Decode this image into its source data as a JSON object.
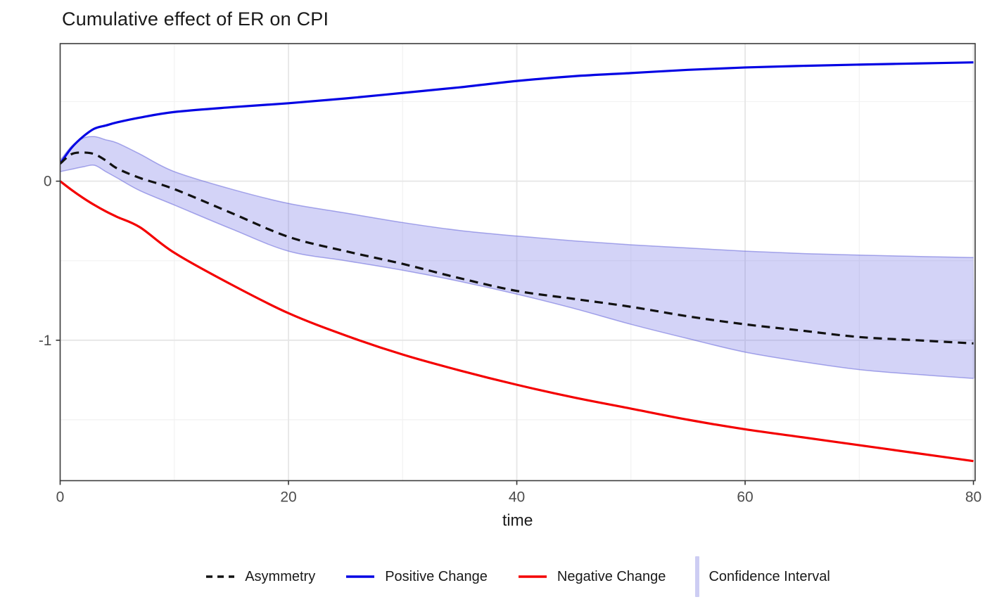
{
  "chart_data": {
    "type": "line",
    "title": "Cumulative effect of ER on CPI",
    "xlabel": "time",
    "xlim": [
      0,
      80.15
    ],
    "ylim": [
      -1.883,
      0.865
    ],
    "grid": true,
    "legend_position": "bottom",
    "x_major": [
      {
        "v": 0,
        "label": "0"
      },
      {
        "v": 20,
        "label": "20"
      },
      {
        "v": 40,
        "label": "40"
      },
      {
        "v": 60,
        "label": "60"
      },
      {
        "v": 80,
        "label": "80"
      }
    ],
    "x_minor": [
      10,
      30,
      50,
      70
    ],
    "y_major": [
      {
        "v": 0,
        "label": "0"
      },
      {
        "v": -1,
        "label": "-1"
      }
    ],
    "y_minor": [
      0.5,
      -0.5,
      -1.5
    ],
    "x": [
      0,
      1,
      2,
      3,
      4,
      5,
      7,
      10,
      15,
      20,
      25,
      30,
      35,
      40,
      45,
      50,
      55,
      60,
      65,
      70,
      75,
      80
    ],
    "series": [
      {
        "name": "Positive Change",
        "color": "#0404e4",
        "dash": false,
        "values": [
          0.11,
          0.21,
          0.28,
          0.33,
          0.35,
          0.37,
          0.4,
          0.435,
          0.465,
          0.49,
          0.52,
          0.555,
          0.59,
          0.63,
          0.66,
          0.68,
          0.7,
          0.715,
          0.725,
          0.733,
          0.74,
          0.747
        ]
      },
      {
        "name": "Negative Change",
        "color": "#f40000",
        "dash": false,
        "values": [
          0.0,
          -0.055,
          -0.105,
          -0.15,
          -0.19,
          -0.225,
          -0.29,
          -0.45,
          -0.65,
          -0.83,
          -0.97,
          -1.09,
          -1.19,
          -1.28,
          -1.36,
          -1.43,
          -1.5,
          -1.56,
          -1.61,
          -1.66,
          -1.71,
          -1.76
        ]
      },
      {
        "name": "Asymmetry",
        "color": "#111111",
        "dash": true,
        "values": [
          0.11,
          0.17,
          0.18,
          0.17,
          0.13,
          0.08,
          0.02,
          -0.05,
          -0.2,
          -0.35,
          -0.44,
          -0.52,
          -0.61,
          -0.69,
          -0.74,
          -0.79,
          -0.85,
          -0.9,
          -0.94,
          -0.98,
          -1.0,
          -1.02
        ]
      }
    ],
    "band": {
      "name": "Confidence Interval",
      "fill": "rgba(120,120,230,0.33)",
      "edge": "rgba(90,90,215,0.5)",
      "upper": [
        0.13,
        0.22,
        0.27,
        0.28,
        0.26,
        0.24,
        0.17,
        0.06,
        -0.05,
        -0.14,
        -0.2,
        -0.26,
        -0.31,
        -0.345,
        -0.375,
        -0.4,
        -0.42,
        -0.44,
        -0.455,
        -0.465,
        -0.473,
        -0.48
      ],
      "lower": [
        0.06,
        0.075,
        0.09,
        0.1,
        0.06,
        0.02,
        -0.06,
        -0.15,
        -0.3,
        -0.44,
        -0.5,
        -0.56,
        -0.63,
        -0.71,
        -0.8,
        -0.9,
        -0.99,
        -1.075,
        -1.135,
        -1.185,
        -1.215,
        -1.24
      ]
    }
  },
  "legend": {
    "items": [
      {
        "id": "asymmetry",
        "label": "Asymmetry",
        "key": "dashed-line",
        "color": "#111111"
      },
      {
        "id": "positive-change",
        "label": "Positive Change",
        "key": "line",
        "color": "#0404e4"
      },
      {
        "id": "negative-change",
        "label": "Negative Change",
        "key": "line",
        "color": "#f40000"
      },
      {
        "id": "confidence-interval",
        "label": "Confidence Interval",
        "key": "bar",
        "color": "#cdcdf3"
      }
    ]
  },
  "colors": {
    "panel_border": "#3c3c3c",
    "grid_major": "#e6e6e6",
    "grid_minor": "#f2f2f2",
    "tick": "#333333",
    "tick_label": "#4d4d4d",
    "axis_title": "#1a1a1a"
  }
}
